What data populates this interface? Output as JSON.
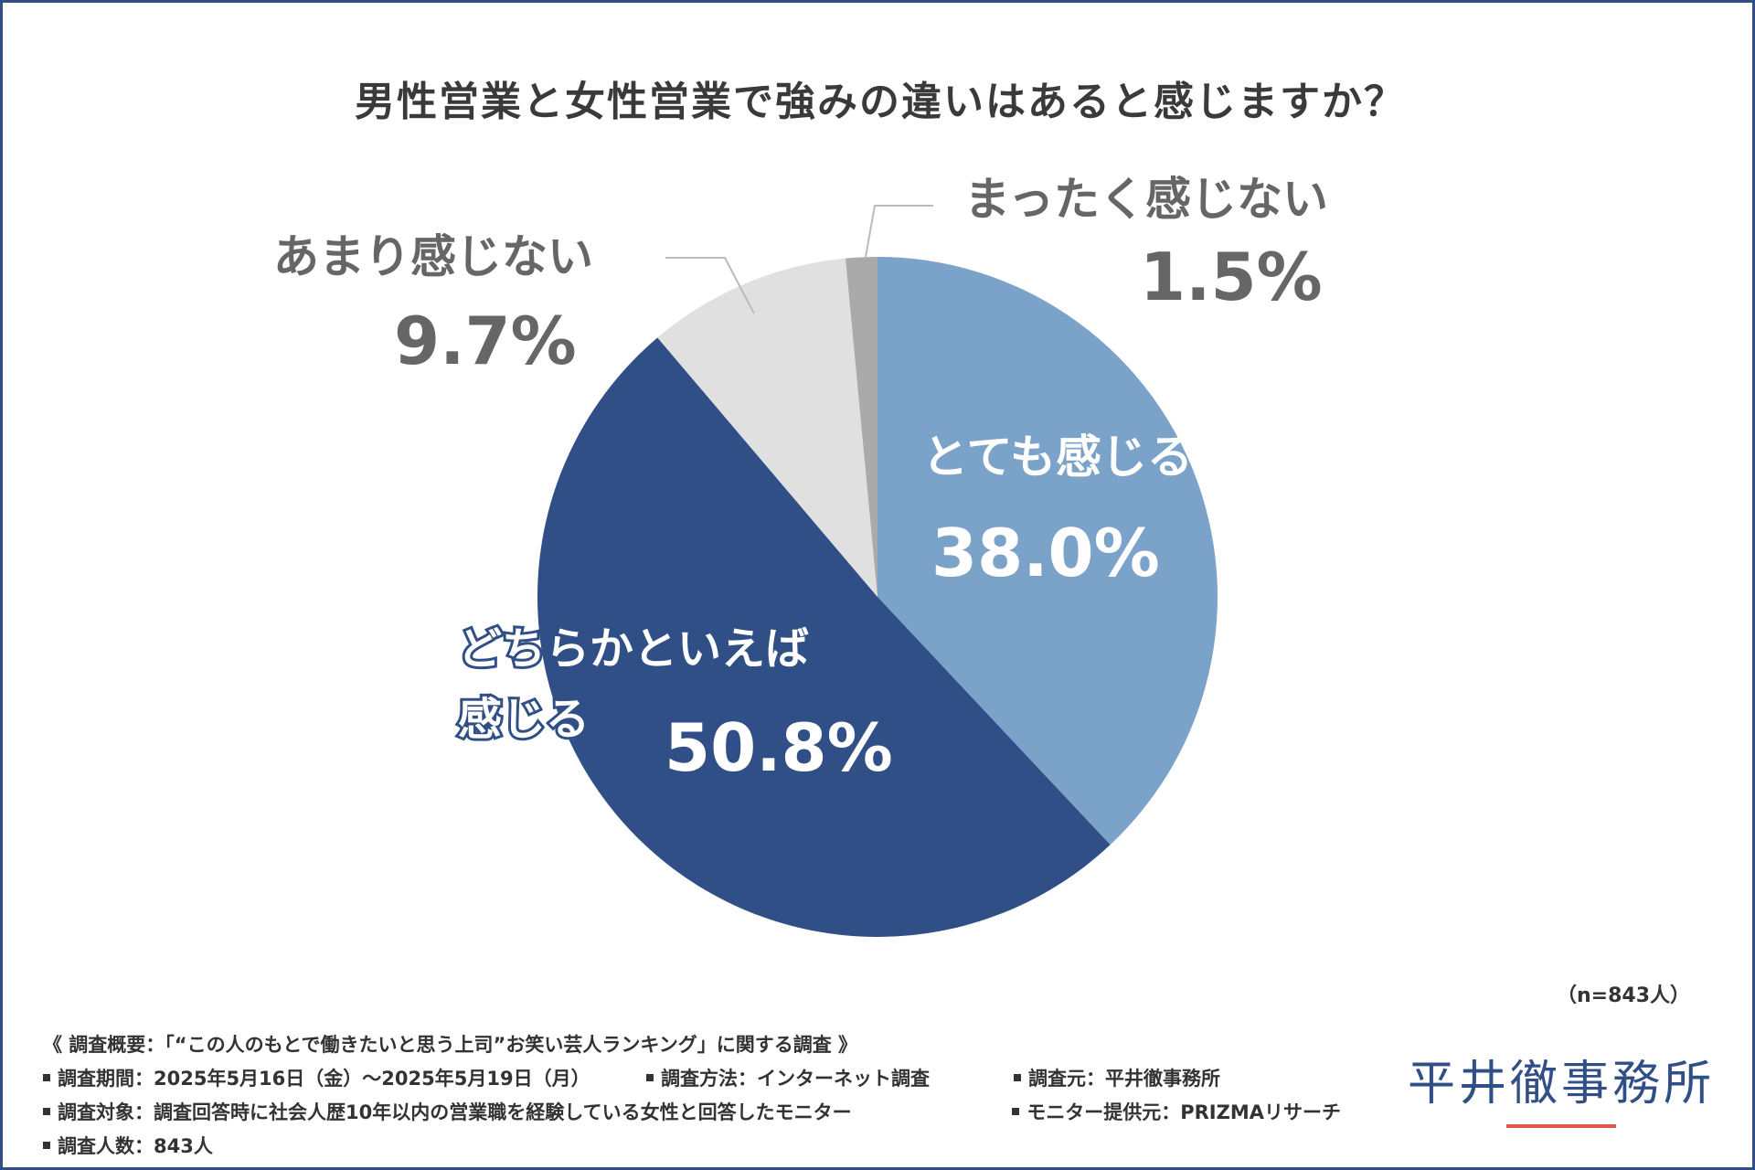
{
  "chart_data": {
    "type": "pie",
    "title": "男性営業と女性営業で強みの違いはあると感じますか？",
    "slices": [
      {
        "label": "とても感じる",
        "value": 38.0,
        "display": "38.0%",
        "color": "#7ba3c9"
      },
      {
        "label": "どちらかといえば感じる",
        "value": 50.8,
        "display": "50.8%",
        "color": "#2f4f86"
      },
      {
        "label": "あまり感じない",
        "value": 9.7,
        "display": "9.7%",
        "color": "#e0e0e0"
      },
      {
        "label": "まったく感じない",
        "value": 1.5,
        "display": "1.5%",
        "color": "#aaaaaa"
      }
    ],
    "start_angle_deg": 0,
    "direction": "clockwise",
    "sample_size": "（n=843人）"
  },
  "labels": {
    "slice_0": {
      "name": "とても感じる",
      "value": "38.0%"
    },
    "slice_1": {
      "line1": "どちらかといえば",
      "line2": "感じる",
      "value": "50.8%"
    },
    "slice_2": {
      "name": "あまり感じない",
      "value": "9.7%"
    },
    "slice_3": {
      "name": "まったく感じない",
      "value": "1.5%"
    }
  },
  "footer": {
    "overview": "《 調査概要：「“この人のもとで働きたいと思う上司”お笑い芸人ランキング」に関する調査 》",
    "period": "調査期間：2025年5月16日（金）～2025年5月19日（月）",
    "method": "調査方法：インターネット調査",
    "organizer": "調査元：平井徹事務所",
    "target": "調査対象：調査回答時に社会人歴10年以内の営業職を経験している女性と回答したモニター",
    "provider": "モニター提供元：PRIZMAリサーチ",
    "count": "調査人数：843人"
  },
  "brand": {
    "name": "平井徹事務所",
    "accent_color": "#e0574f"
  }
}
